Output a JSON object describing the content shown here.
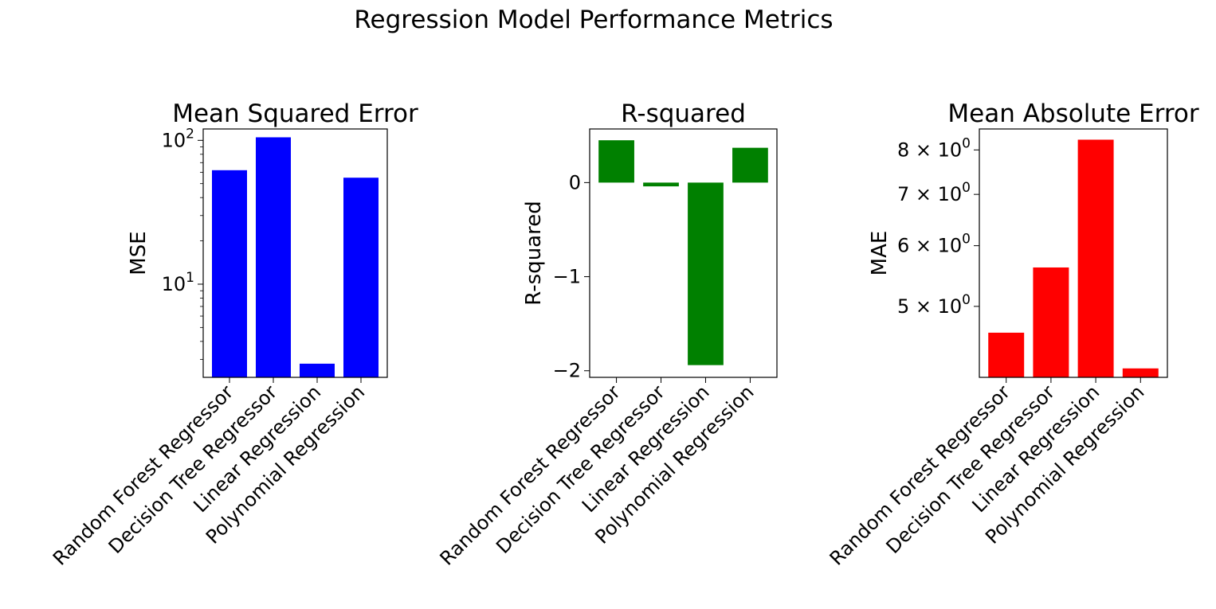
{
  "chart_data": {
    "title": "Regression Model Performance Metrics",
    "categories": [
      "Random Forest Regressor",
      "Decision Tree Regressor",
      "Linear Regression",
      "Polynomial Regression"
    ],
    "charts": [
      {
        "type": "bar",
        "title": "Mean Squared Error",
        "xlabel": "",
        "ylabel": "MSE",
        "yscale": "log",
        "ylim": [
          2.25,
          120
        ],
        "values": [
          62,
          105,
          2.8,
          55
        ],
        "color": "#0000ff",
        "ticks": [
          {
            "value": 10,
            "label": "10",
            "exp": "1"
          },
          {
            "value": 100,
            "label": "10",
            "exp": "2"
          }
        ]
      },
      {
        "type": "bar",
        "title": "R-squared",
        "xlabel": "",
        "ylabel": "R-squared",
        "yscale": "linear",
        "ylim": [
          -2.07,
          0.57
        ],
        "values": [
          0.45,
          -0.04,
          -1.94,
          0.37
        ],
        "color": "#008000",
        "ticks": [
          {
            "value": 0,
            "label": "0"
          },
          {
            "value": -1,
            "label": "−1"
          },
          {
            "value": -2,
            "label": "−2"
          }
        ]
      },
      {
        "type": "bar",
        "title": "Mean Absolute Error",
        "xlabel": "",
        "ylabel": "MAE",
        "yscale": "log",
        "ylim": [
          4.04,
          8.52
        ],
        "values": [
          4.62,
          5.62,
          8.25,
          4.15
        ],
        "color": "#ff0000",
        "ticks": [
          {
            "value": 5,
            "label": "5 × 10",
            "exp": "0"
          },
          {
            "value": 6,
            "label": "6 × 10",
            "exp": "0"
          },
          {
            "value": 7,
            "label": "7 × 10",
            "exp": "0"
          },
          {
            "value": 8,
            "label": "8 × 10",
            "exp": "0"
          }
        ]
      }
    ]
  }
}
